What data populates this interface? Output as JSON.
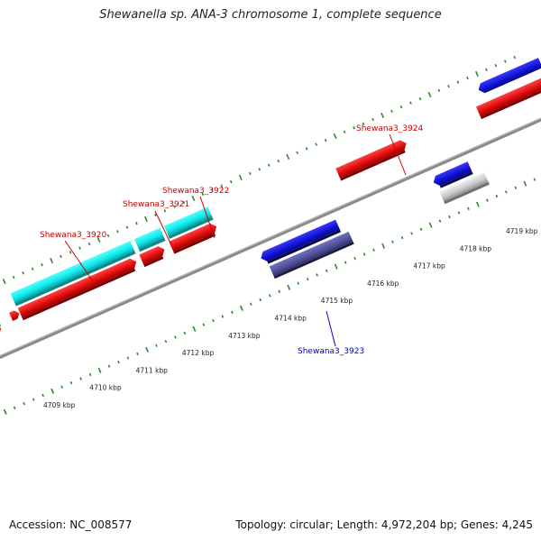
{
  "title": "Shewanella sp. ANA-3 chromosome 1, complete sequence",
  "footer": {
    "accession": "Accession: NC_008577",
    "summary": "Topology: circular; Length: 4,972,204 bp; Genes: 4,245"
  },
  "colors": {
    "forward_cds": "#e01010",
    "reverse_cds": "#1010d0",
    "rrna_like": "#10e0e0",
    "pseudo_reverse": "#5050a0",
    "other": "#c8c8c8",
    "backbone": "#808080",
    "ticks": "#2a8a2a",
    "label_red": "#cc0000",
    "label_blue": "#0000cc"
  },
  "kbp_labels": [
    "4709 kbp",
    "4710 kbp",
    "4711 kbp",
    "4712 kbp",
    "4713 kbp",
    "4714 kbp",
    "4715 kbp",
    "4716 kbp",
    "4717 kbp",
    "4718 kbp",
    "4719 kbp"
  ],
  "gene_labels": [
    {
      "name": "Shewana3_3920",
      "strand": "forward"
    },
    {
      "name": "Shewana3_3921",
      "strand": "forward"
    },
    {
      "name": "Shewana3_3922",
      "strand": "forward"
    },
    {
      "name": "Shewana3_3924",
      "strand": "forward"
    },
    {
      "name": "Shewana3_3923",
      "strand": "reverse"
    }
  ]
}
